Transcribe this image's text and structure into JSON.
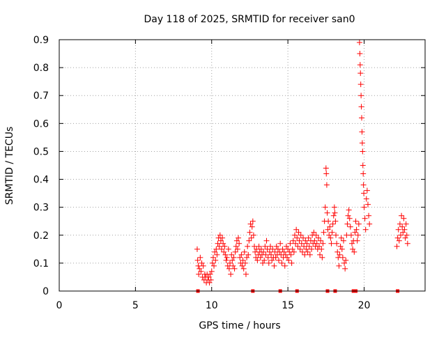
{
  "chart_data": {
    "type": "scatter",
    "title": "Day 118 of 2025, SRMTID for receiver san0",
    "xlabel": "GPS time / hours",
    "ylabel": "SRMTID / TECUs",
    "xlim": [
      0,
      24
    ],
    "ylim": [
      0,
      0.9
    ],
    "x_ticks": [
      "0",
      "5",
      "10",
      "15",
      "20"
    ],
    "y_ticks": [
      "0",
      "0.1",
      "0.2",
      "0.3",
      "0.4",
      "0.5",
      "0.6",
      "0.7",
      "0.8",
      "0.9"
    ],
    "grid": true,
    "marker": "+",
    "colors": {
      "points": "#ff0000",
      "grid": "#a0a0a0",
      "axes": "#000000"
    },
    "points": [
      [
        9.05,
        0.15
      ],
      [
        9.08,
        0.11
      ],
      [
        9.12,
        0.09
      ],
      [
        9.15,
        0.06
      ],
      [
        9.2,
        0.08
      ],
      [
        9.25,
        0.12
      ],
      [
        9.3,
        0.07
      ],
      [
        9.35,
        0.1
      ],
      [
        9.4,
        0.05
      ],
      [
        9.45,
        0.09
      ],
      [
        9.5,
        0.04
      ],
      [
        9.55,
        0.06
      ],
      [
        9.6,
        0.05
      ],
      [
        9.65,
        0.03
      ],
      [
        9.7,
        0.06
      ],
      [
        9.75,
        0.04
      ],
      [
        9.8,
        0.05
      ],
      [
        9.85,
        0.03
      ],
      [
        9.9,
        0.06
      ],
      [
        9.95,
        0.04
      ],
      [
        10.0,
        0.07
      ],
      [
        10.05,
        0.1
      ],
      [
        10.1,
        0.12
      ],
      [
        10.15,
        0.09
      ],
      [
        10.2,
        0.14
      ],
      [
        10.25,
        0.11
      ],
      [
        10.3,
        0.15
      ],
      [
        10.35,
        0.13
      ],
      [
        10.4,
        0.17
      ],
      [
        10.45,
        0.19
      ],
      [
        10.5,
        0.16
      ],
      [
        10.55,
        0.2
      ],
      [
        10.6,
        0.18
      ],
      [
        10.65,
        0.15
      ],
      [
        10.7,
        0.19
      ],
      [
        10.75,
        0.17
      ],
      [
        10.8,
        0.14
      ],
      [
        10.85,
        0.16
      ],
      [
        10.9,
        0.13
      ],
      [
        10.95,
        0.11
      ],
      [
        11.0,
        0.12
      ],
      [
        11.05,
        0.09
      ],
      [
        11.1,
        0.15
      ],
      [
        11.15,
        0.08
      ],
      [
        11.2,
        0.1
      ],
      [
        11.25,
        0.06
      ],
      [
        11.3,
        0.13
      ],
      [
        11.35,
        0.11
      ],
      [
        11.4,
        0.09
      ],
      [
        11.45,
        0.12
      ],
      [
        11.5,
        0.08
      ],
      [
        11.55,
        0.14
      ],
      [
        11.6,
        0.16
      ],
      [
        11.65,
        0.18
      ],
      [
        11.7,
        0.15
      ],
      [
        11.75,
        0.19
      ],
      [
        11.8,
        0.17
      ],
      [
        11.85,
        0.12
      ],
      [
        11.9,
        0.1
      ],
      [
        11.95,
        0.13
      ],
      [
        12.0,
        0.09
      ],
      [
        12.05,
        0.11
      ],
      [
        12.1,
        0.08
      ],
      [
        12.15,
        0.14
      ],
      [
        12.2,
        0.1
      ],
      [
        12.25,
        0.06
      ],
      [
        12.3,
        0.12
      ],
      [
        12.35,
        0.16
      ],
      [
        12.4,
        0.13
      ],
      [
        12.45,
        0.18
      ],
      [
        12.5,
        0.21
      ],
      [
        12.55,
        0.24
      ],
      [
        12.6,
        0.19
      ],
      [
        12.65,
        0.23
      ],
      [
        12.7,
        0.25
      ],
      [
        12.75,
        0.2
      ],
      [
        12.8,
        0.16
      ],
      [
        12.85,
        0.14
      ],
      [
        12.9,
        0.12
      ],
      [
        12.95,
        0.15
      ],
      [
        13.0,
        0.11
      ],
      [
        13.05,
        0.13
      ],
      [
        13.1,
        0.16
      ],
      [
        13.15,
        0.14
      ],
      [
        13.2,
        0.12
      ],
      [
        13.25,
        0.15
      ],
      [
        13.3,
        0.13
      ],
      [
        13.35,
        0.1
      ],
      [
        13.4,
        0.14
      ],
      [
        13.45,
        0.11
      ],
      [
        13.5,
        0.16
      ],
      [
        13.55,
        0.13
      ],
      [
        13.6,
        0.18
      ],
      [
        13.65,
        0.15
      ],
      [
        13.7,
        0.12
      ],
      [
        13.75,
        0.1
      ],
      [
        13.8,
        0.14
      ],
      [
        13.85,
        0.16
      ],
      [
        13.9,
        0.13
      ],
      [
        13.95,
        0.11
      ],
      [
        14.0,
        0.15
      ],
      [
        14.05,
        0.12
      ],
      [
        14.1,
        0.09
      ],
      [
        14.15,
        0.14
      ],
      [
        14.2,
        0.12
      ],
      [
        14.25,
        0.16
      ],
      [
        14.3,
        0.13
      ],
      [
        14.35,
        0.15
      ],
      [
        14.4,
        0.11
      ],
      [
        14.45,
        0.14
      ],
      [
        14.5,
        0.17
      ],
      [
        14.55,
        0.13
      ],
      [
        14.6,
        0.1
      ],
      [
        14.65,
        0.15
      ],
      [
        14.7,
        0.12
      ],
      [
        14.75,
        0.14
      ],
      [
        14.8,
        0.09
      ],
      [
        14.85,
        0.13
      ],
      [
        14.9,
        0.16
      ],
      [
        14.95,
        0.12
      ],
      [
        15.0,
        0.15
      ],
      [
        15.05,
        0.11
      ],
      [
        15.1,
        0.14
      ],
      [
        15.15,
        0.17
      ],
      [
        15.2,
        0.13
      ],
      [
        15.25,
        0.1
      ],
      [
        15.3,
        0.15
      ],
      [
        15.35,
        0.18
      ],
      [
        15.4,
        0.14
      ],
      [
        15.45,
        0.2
      ],
      [
        15.5,
        0.17
      ],
      [
        15.55,
        0.22
      ],
      [
        15.6,
        0.19
      ],
      [
        15.65,
        0.16
      ],
      [
        15.7,
        0.21
      ],
      [
        15.75,
        0.18
      ],
      [
        15.8,
        0.15
      ],
      [
        15.85,
        0.2
      ],
      [
        15.9,
        0.17
      ],
      [
        15.95,
        0.14
      ],
      [
        16.0,
        0.19
      ],
      [
        16.05,
        0.16
      ],
      [
        16.1,
        0.13
      ],
      [
        16.15,
        0.18
      ],
      [
        16.2,
        0.15
      ],
      [
        16.25,
        0.17
      ],
      [
        16.3,
        0.14
      ],
      [
        16.35,
        0.19
      ],
      [
        16.4,
        0.16
      ],
      [
        16.45,
        0.13
      ],
      [
        16.5,
        0.18
      ],
      [
        16.55,
        0.15
      ],
      [
        16.6,
        0.2
      ],
      [
        16.65,
        0.17
      ],
      [
        16.7,
        0.21
      ],
      [
        16.75,
        0.18
      ],
      [
        16.8,
        0.16
      ],
      [
        16.85,
        0.2
      ],
      [
        16.9,
        0.17
      ],
      [
        16.95,
        0.15
      ],
      [
        17.0,
        0.19
      ],
      [
        17.05,
        0.16
      ],
      [
        17.1,
        0.13
      ],
      [
        17.15,
        0.18
      ],
      [
        17.2,
        0.15
      ],
      [
        17.25,
        0.12
      ],
      [
        17.3,
        0.17
      ],
      [
        17.35,
        0.21
      ],
      [
        17.4,
        0.25
      ],
      [
        17.45,
        0.3
      ],
      [
        17.5,
        0.44
      ],
      [
        17.52,
        0.42
      ],
      [
        17.55,
        0.38
      ],
      [
        17.58,
        0.28
      ],
      [
        17.62,
        0.22
      ],
      [
        17.65,
        0.25
      ],
      [
        17.7,
        0.2
      ],
      [
        17.75,
        0.23
      ],
      [
        17.8,
        0.19
      ],
      [
        17.85,
        0.17
      ],
      [
        17.9,
        0.21
      ],
      [
        17.95,
        0.24
      ],
      [
        18.0,
        0.27
      ],
      [
        18.05,
        0.3
      ],
      [
        18.08,
        0.28
      ],
      [
        18.12,
        0.25
      ],
      [
        18.15,
        0.2
      ],
      [
        18.2,
        0.17
      ],
      [
        18.25,
        0.14
      ],
      [
        18.3,
        0.12
      ],
      [
        18.35,
        0.09
      ],
      [
        18.4,
        0.13
      ],
      [
        18.45,
        0.16
      ],
      [
        18.5,
        0.19
      ],
      [
        18.55,
        0.15
      ],
      [
        18.6,
        0.12
      ],
      [
        18.65,
        0.18
      ],
      [
        18.7,
        0.1
      ],
      [
        18.75,
        0.08
      ],
      [
        18.8,
        0.11
      ],
      [
        18.85,
        0.2
      ],
      [
        18.9,
        0.24
      ],
      [
        18.95,
        0.27
      ],
      [
        19.0,
        0.29
      ],
      [
        19.05,
        0.26
      ],
      [
        19.1,
        0.23
      ],
      [
        19.15,
        0.2
      ],
      [
        19.2,
        0.17
      ],
      [
        19.25,
        0.15
      ],
      [
        19.3,
        0.18
      ],
      [
        19.35,
        0.14
      ],
      [
        19.4,
        0.21
      ],
      [
        19.45,
        0.25
      ],
      [
        19.5,
        0.22
      ],
      [
        19.55,
        0.18
      ],
      [
        19.6,
        0.2
      ],
      [
        19.65,
        0.24
      ],
      [
        19.7,
        0.89
      ],
      [
        19.72,
        0.85
      ],
      [
        19.74,
        0.81
      ],
      [
        19.76,
        0.78
      ],
      [
        19.78,
        0.74
      ],
      [
        19.8,
        0.7
      ],
      [
        19.82,
        0.66
      ],
      [
        19.84,
        0.62
      ],
      [
        19.86,
        0.57
      ],
      [
        19.88,
        0.53
      ],
      [
        19.9,
        0.5
      ],
      [
        19.92,
        0.45
      ],
      [
        19.94,
        0.42
      ],
      [
        19.96,
        0.38
      ],
      [
        19.98,
        0.35
      ],
      [
        20.0,
        0.3
      ],
      [
        20.05,
        0.26
      ],
      [
        20.1,
        0.22
      ],
      [
        20.15,
        0.33
      ],
      [
        20.2,
        0.36
      ],
      [
        20.25,
        0.31
      ],
      [
        20.3,
        0.27
      ],
      [
        20.35,
        0.24
      ],
      [
        22.15,
        0.16
      ],
      [
        22.2,
        0.19
      ],
      [
        22.25,
        0.22
      ],
      [
        22.3,
        0.18
      ],
      [
        22.35,
        0.24
      ],
      [
        22.4,
        0.2
      ],
      [
        22.45,
        0.27
      ],
      [
        22.5,
        0.23
      ],
      [
        22.55,
        0.21
      ],
      [
        22.6,
        0.26
      ],
      [
        22.65,
        0.22
      ],
      [
        22.7,
        0.19
      ],
      [
        22.75,
        0.24
      ],
      [
        22.8,
        0.2
      ],
      [
        22.85,
        0.17
      ]
    ],
    "zero_markers_x": [
      9.1,
      12.7,
      14.5,
      15.6,
      17.6,
      18.1,
      19.3,
      19.45,
      22.2
    ]
  }
}
